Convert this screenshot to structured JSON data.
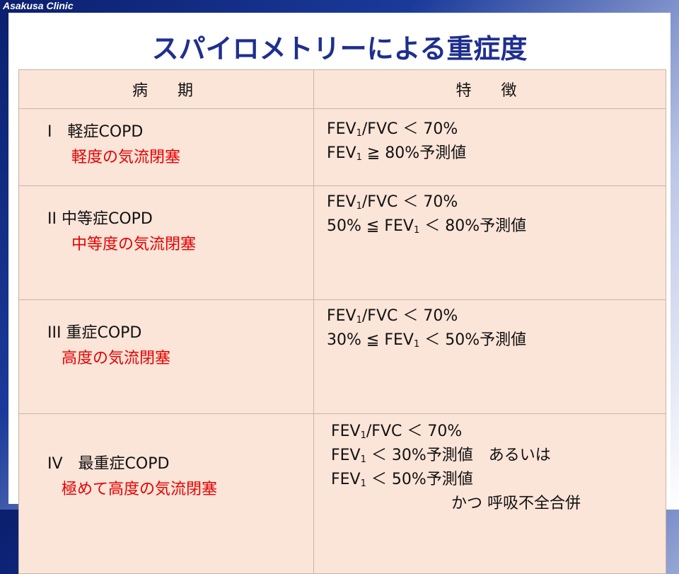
{
  "header": {
    "clinic_name": "Asakusa Clinic"
  },
  "slide": {
    "title": "スパイロメトリーによる重症度"
  },
  "table": {
    "headers": {
      "stage": "病　期",
      "features": "特　徴"
    },
    "rows": [
      {
        "stage_label": "I　軽症COPD",
        "severity": "軽度の気流閉塞",
        "criteria": [
          [
            "FEV",
            "1",
            "/FVC ＜ 70%"
          ],
          [
            "FEV",
            "1",
            " ≧ 80%予測値"
          ]
        ]
      },
      {
        "stage_label": "II  中等症COPD",
        "severity": "中等度の気流閉塞",
        "criteria": [
          [
            "FEV",
            "1",
            "/FVC ＜ 70%"
          ],
          [
            "50% ≦ FEV",
            "1",
            " ＜ 80%予測値"
          ]
        ]
      },
      {
        "stage_label": "III  重症COPD",
        "severity": "高度の気流閉塞",
        "criteria": [
          [
            "FEV",
            "1",
            "/FVC ＜ 70%"
          ],
          [
            "30% ≦ FEV",
            "1",
            " ＜ 50%予測値"
          ]
        ]
      },
      {
        "stage_label": "IV　最重症COPD",
        "severity": "極めて高度の気流閉塞",
        "criteria": [
          [
            "FEV",
            "1",
            "/FVC ＜ 70%"
          ],
          [
            "FEV",
            "1",
            " ＜ 30%予測値　あるいは"
          ],
          [
            "FEV",
            "1",
            " ＜ 50%予測値"
          ],
          [
            "かつ 呼吸不全合併",
            "",
            ""
          ]
        ]
      }
    ]
  }
}
